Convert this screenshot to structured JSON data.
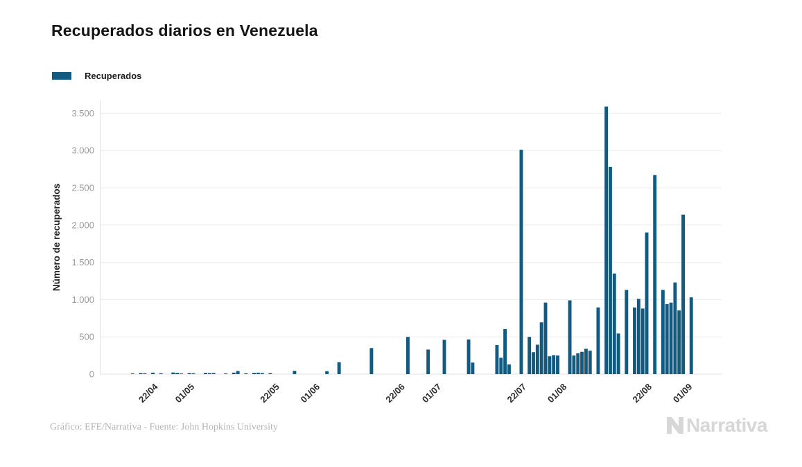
{
  "page": {
    "title": "Recuperados diarios en Venezuela",
    "footer": "Gráfico: EFE/Narrativa - Fuente: John Hopkins University",
    "brand": "Narrativa"
  },
  "legend": {
    "label": "Recuperados",
    "color": "#125a7f"
  },
  "colors": {
    "bar": "#125a7f",
    "grid": "#ececec",
    "axis_line": "#e0e0e0",
    "y_tick_text": "#9b9b9b",
    "x_tick_text": "#2e2e2e",
    "title_text": "#141414",
    "footer_text": "#b5b5b5",
    "brand_text": "#d7d7d7"
  },
  "chart_data": {
    "type": "bar",
    "title": "Recuperados diarios en Venezuela",
    "xlabel": "",
    "ylabel": "Número de recuperados",
    "ylim": [
      0,
      3500
    ],
    "y_tick_step": 500,
    "y_tick_labels": [
      "0",
      "500",
      "1.000",
      "1.500",
      "2.000",
      "2.500",
      "3.000",
      "3.500"
    ],
    "x_tick_labels": [
      "22/04",
      "01/05",
      "22/05",
      "01/06",
      "22/06",
      "01/07",
      "22/07",
      "01/08",
      "22/08",
      "01/09"
    ],
    "grid": "horizontal",
    "legend_position": "top-left",
    "series_name": "Recuperados",
    "dates": [
      "10/04",
      "11/04",
      "12/04",
      "13/04",
      "14/04",
      "15/04",
      "16/04",
      "17/04",
      "18/04",
      "19/04",
      "20/04",
      "21/04",
      "22/04",
      "23/04",
      "24/04",
      "25/04",
      "26/04",
      "27/04",
      "28/04",
      "29/04",
      "30/04",
      "01/05",
      "02/05",
      "03/05",
      "04/05",
      "05/05",
      "06/05",
      "07/05",
      "08/05",
      "09/05",
      "10/05",
      "11/05",
      "12/05",
      "13/05",
      "14/05",
      "15/05",
      "16/05",
      "17/05",
      "18/05",
      "19/05",
      "20/05",
      "21/05",
      "22/05",
      "23/05",
      "24/05",
      "25/05",
      "26/05",
      "27/05",
      "28/05",
      "29/05",
      "30/05",
      "31/05",
      "01/06",
      "02/06",
      "03/06",
      "04/06",
      "05/06",
      "06/06",
      "07/06",
      "08/06",
      "09/06",
      "10/06",
      "11/06",
      "12/06",
      "13/06",
      "14/06",
      "15/06",
      "16/06",
      "17/06",
      "18/06",
      "19/06",
      "20/06",
      "21/06",
      "22/06",
      "23/06",
      "24/06",
      "25/06",
      "26/06",
      "27/06",
      "28/06",
      "29/06",
      "30/06",
      "01/07",
      "02/07",
      "03/07",
      "04/07",
      "05/07",
      "06/07",
      "07/07",
      "08/07",
      "09/07",
      "10/07",
      "11/07",
      "12/07",
      "13/07",
      "14/07",
      "15/07",
      "16/07",
      "17/07",
      "18/07",
      "19/07",
      "20/07",
      "21/07",
      "22/07",
      "23/07",
      "24/07",
      "25/07",
      "26/07",
      "27/07",
      "28/07",
      "29/07",
      "30/07",
      "31/07",
      "01/08",
      "02/08",
      "03/08",
      "04/08",
      "05/08",
      "06/08",
      "07/08",
      "08/08",
      "09/08",
      "10/08",
      "11/08",
      "12/08",
      "13/08",
      "14/08",
      "15/08",
      "16/08",
      "17/08",
      "18/08",
      "19/08",
      "20/08",
      "21/08",
      "22/08",
      "23/08",
      "24/08",
      "25/08",
      "26/08",
      "27/08",
      "28/08",
      "29/08",
      "30/08",
      "31/08",
      "01/09",
      "02/09",
      "03/09"
    ],
    "values": [
      0,
      0,
      0,
      0,
      0,
      0,
      0,
      10,
      0,
      15,
      12,
      0,
      20,
      0,
      12,
      0,
      0,
      22,
      18,
      10,
      0,
      15,
      12,
      0,
      0,
      18,
      15,
      16,
      0,
      0,
      10,
      0,
      20,
      42,
      0,
      12,
      0,
      18,
      20,
      16,
      0,
      14,
      0,
      0,
      0,
      0,
      0,
      45,
      0,
      0,
      0,
      0,
      0,
      0,
      0,
      40,
      0,
      0,
      160,
      0,
      0,
      0,
      0,
      0,
      0,
      0,
      350,
      0,
      0,
      0,
      0,
      0,
      0,
      0,
      0,
      500,
      0,
      0,
      0,
      0,
      330,
      0,
      0,
      0,
      460,
      0,
      0,
      0,
      0,
      0,
      465,
      155,
      0,
      0,
      0,
      0,
      0,
      390,
      220,
      605,
      130,
      0,
      0,
      3010,
      0,
      500,
      295,
      395,
      695,
      960,
      240,
      255,
      250,
      0,
      0,
      990,
      250,
      280,
      300,
      340,
      315,
      0,
      895,
      0,
      3590,
      2780,
      1350,
      545,
      0,
      1130,
      0,
      895,
      1010,
      880,
      1900,
      0,
      2670,
      0,
      1130,
      940,
      960,
      1230,
      855,
      2140,
      0,
      1030,
      0
    ]
  }
}
